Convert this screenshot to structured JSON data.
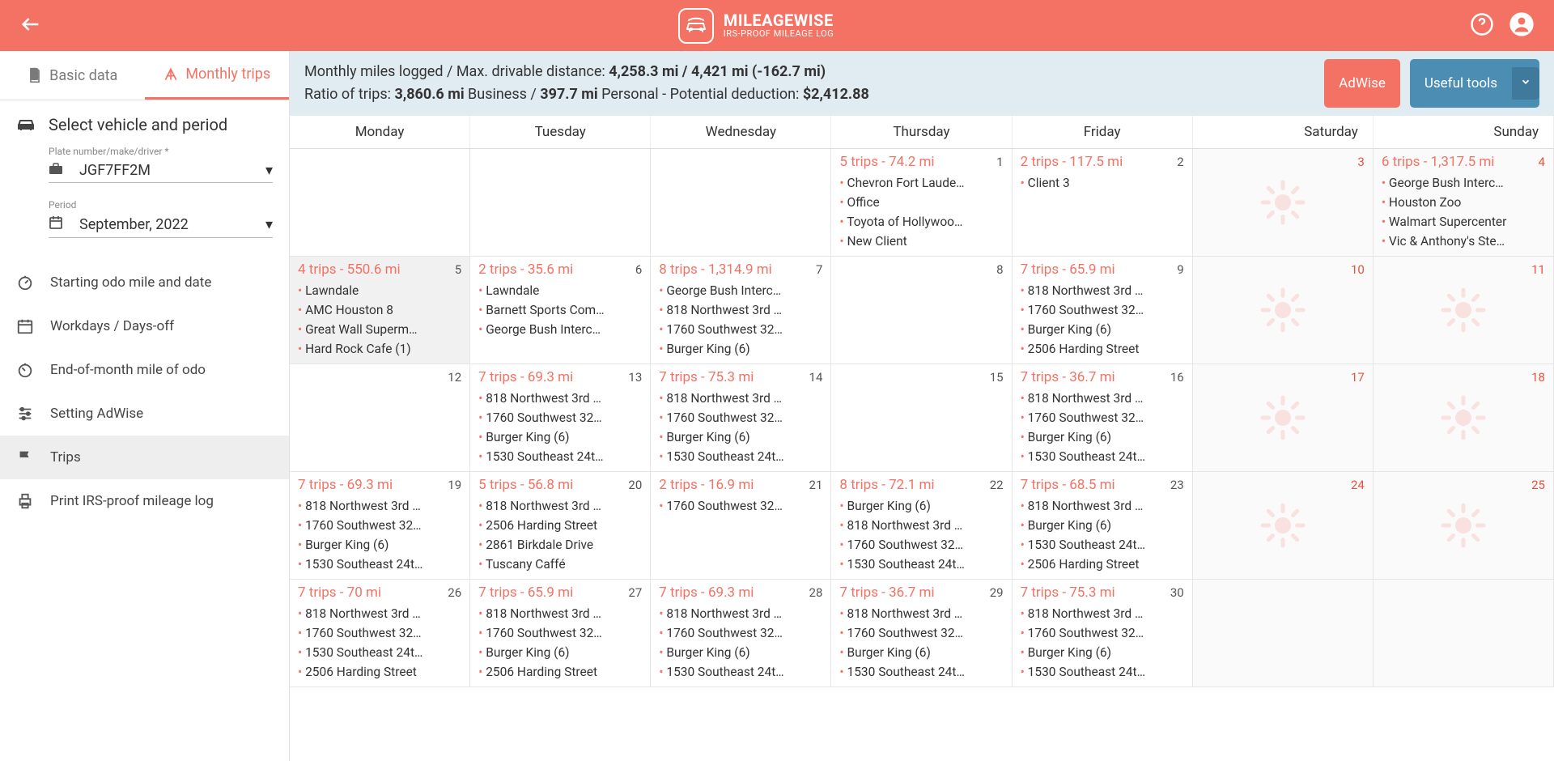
{
  "header": {
    "brand_top": "MILEAGEWISE",
    "brand_sub": "IRS-PROOF MILEAGE LOG"
  },
  "tabs": {
    "basic": "Basic data",
    "monthly": "Monthly trips"
  },
  "sidebar": {
    "section_title": "Select vehicle and period",
    "plate_label": "Plate number/make/driver *",
    "plate_value": "JGF7FF2M",
    "period_label": "Period",
    "period_value": "September, 2022",
    "nav": {
      "odo_start": "Starting odo mile and date",
      "workdays": "Workdays / Days-off",
      "odo_end": "End-of-month mile of odo",
      "adwise": "Setting AdWise",
      "trips": "Trips",
      "print": "Print IRS-proof mileage log"
    }
  },
  "summary": {
    "line1_prefix": "Monthly miles logged / Max. drivable distance: ",
    "line1_bold": "4,258.3 mi / 4,421 mi (-162.7 mi)",
    "line2_a": "Ratio of trips: ",
    "line2_b": "3,860.6 mi",
    "line2_c": " Business / ",
    "line2_d": "397.7 mi",
    "line2_e": " Personal - Potential deduction: ",
    "line2_f": "$2,412.88",
    "btn_adwise": "AdWise",
    "btn_tools": "Useful tools"
  },
  "weekdays": [
    "Monday",
    "Tuesday",
    "Wednesday",
    "Thursday",
    "Friday",
    "Saturday",
    "Sunday"
  ],
  "cells": [
    {
      "day": "",
      "summary": "",
      "items": [],
      "weekend": false,
      "red": false,
      "sun": false
    },
    {
      "day": "",
      "summary": "",
      "items": [],
      "weekend": false,
      "red": false,
      "sun": false
    },
    {
      "day": "",
      "summary": "",
      "items": [],
      "weekend": false,
      "red": false,
      "sun": false
    },
    {
      "day": "1",
      "summary": "5 trips - 74.2 mi",
      "items": [
        "Chevron Fort Laude…",
        "Office",
        "Toyota of Hollywoo…",
        "New Client"
      ],
      "weekend": false,
      "red": false,
      "sun": false
    },
    {
      "day": "2",
      "summary": "2 trips - 117.5 mi",
      "items": [
        "Client 3"
      ],
      "weekend": false,
      "red": false,
      "sun": false
    },
    {
      "day": "3",
      "summary": "",
      "items": [],
      "weekend": true,
      "red": true,
      "sun": true
    },
    {
      "day": "4",
      "summary": "6 trips - 1,317.5 mi",
      "items": [
        "George Bush Interc…",
        "Houston Zoo",
        "Walmart Supercenter",
        "Vic & Anthony's Ste…"
      ],
      "weekend": true,
      "red": true,
      "sun": false
    },
    {
      "day": "5",
      "summary": "4 trips - 550.6 mi",
      "items": [
        "Lawndale",
        "AMC Houston 8",
        "Great Wall Superm…",
        "Hard Rock Cafe (1)"
      ],
      "weekend": false,
      "red": false,
      "sun": false,
      "highlight": true
    },
    {
      "day": "6",
      "summary": "2 trips - 35.6 mi",
      "items": [
        "Lawndale",
        "Barnett Sports Com…",
        "George Bush Interc…"
      ],
      "weekend": false,
      "red": false,
      "sun": false
    },
    {
      "day": "7",
      "summary": "8 trips - 1,314.9 mi",
      "items": [
        "George Bush Interc…",
        "818 Northwest 3rd …",
        "1760 Southwest 32…",
        "Burger King (6)"
      ],
      "weekend": false,
      "red": false,
      "sun": false
    },
    {
      "day": "8",
      "summary": "",
      "items": [],
      "weekend": false,
      "red": false,
      "sun": false
    },
    {
      "day": "9",
      "summary": "7 trips - 65.9 mi",
      "items": [
        "818 Northwest 3rd …",
        "1760 Southwest 32…",
        "Burger King (6)",
        "2506 Harding Street"
      ],
      "weekend": false,
      "red": false,
      "sun": false
    },
    {
      "day": "10",
      "summary": "",
      "items": [],
      "weekend": true,
      "red": true,
      "sun": true
    },
    {
      "day": "11",
      "summary": "",
      "items": [],
      "weekend": true,
      "red": true,
      "sun": true
    },
    {
      "day": "12",
      "summary": "",
      "items": [],
      "weekend": false,
      "red": false,
      "sun": false
    },
    {
      "day": "13",
      "summary": "7 trips - 69.3 mi",
      "items": [
        "818 Northwest 3rd …",
        "1760 Southwest 32…",
        "Burger King (6)",
        "1530 Southeast 24t…"
      ],
      "weekend": false,
      "red": false,
      "sun": false
    },
    {
      "day": "14",
      "summary": "7 trips - 75.3 mi",
      "items": [
        "818 Northwest 3rd …",
        "1760 Southwest 32…",
        "Burger King (6)",
        "1530 Southeast 24t…"
      ],
      "weekend": false,
      "red": false,
      "sun": false
    },
    {
      "day": "15",
      "summary": "",
      "items": [],
      "weekend": false,
      "red": false,
      "sun": false
    },
    {
      "day": "16",
      "summary": "7 trips - 36.7 mi",
      "items": [
        "818 Northwest 3rd …",
        "1760 Southwest 32…",
        "Burger King (6)",
        "1530 Southeast 24t…"
      ],
      "weekend": false,
      "red": false,
      "sun": false
    },
    {
      "day": "17",
      "summary": "",
      "items": [],
      "weekend": true,
      "red": true,
      "sun": true
    },
    {
      "day": "18",
      "summary": "",
      "items": [],
      "weekend": true,
      "red": true,
      "sun": true
    },
    {
      "day": "19",
      "summary": "7 trips - 69.3 mi",
      "items": [
        "818 Northwest 3rd …",
        "1760 Southwest 32…",
        "Burger King (6)",
        "1530 Southeast 24t…"
      ],
      "weekend": false,
      "red": false,
      "sun": false
    },
    {
      "day": "20",
      "summary": "5 trips - 56.8 mi",
      "items": [
        "818 Northwest 3rd …",
        "2506 Harding Street",
        "2861 Birkdale Drive",
        "Tuscany Caffé"
      ],
      "weekend": false,
      "red": false,
      "sun": false
    },
    {
      "day": "21",
      "summary": "2 trips - 16.9 mi",
      "items": [
        "1760 Southwest 32…"
      ],
      "weekend": false,
      "red": false,
      "sun": false
    },
    {
      "day": "22",
      "summary": "8 trips - 72.1 mi",
      "items": [
        "Burger King (6)",
        "818 Northwest 3rd …",
        "1760 Southwest 32…",
        "1530 Southeast 24t…"
      ],
      "weekend": false,
      "red": false,
      "sun": false
    },
    {
      "day": "23",
      "summary": "7 trips - 68.5 mi",
      "items": [
        "818 Northwest 3rd …",
        "Burger King (6)",
        "1530 Southeast 24t…",
        "2506 Harding Street"
      ],
      "weekend": false,
      "red": false,
      "sun": false
    },
    {
      "day": "24",
      "summary": "",
      "items": [],
      "weekend": true,
      "red": true,
      "sun": true
    },
    {
      "day": "25",
      "summary": "",
      "items": [],
      "weekend": true,
      "red": true,
      "sun": true
    },
    {
      "day": "26",
      "summary": "7 trips - 70 mi",
      "items": [
        "818 Northwest 3rd …",
        "1760 Southwest 32…",
        "1530 Southeast 24t…",
        "2506 Harding Street"
      ],
      "weekend": false,
      "red": false,
      "sun": false
    },
    {
      "day": "27",
      "summary": "7 trips - 65.9 mi",
      "items": [
        "818 Northwest 3rd …",
        "1760 Southwest 32…",
        "Burger King (6)",
        "2506 Harding Street"
      ],
      "weekend": false,
      "red": false,
      "sun": false
    },
    {
      "day": "28",
      "summary": "7 trips - 69.3 mi",
      "items": [
        "818 Northwest 3rd …",
        "1760 Southwest 32…",
        "Burger King (6)",
        "1530 Southeast 24t…"
      ],
      "weekend": false,
      "red": false,
      "sun": false
    },
    {
      "day": "29",
      "summary": "7 trips - 36.7 mi",
      "items": [
        "818 Northwest 3rd …",
        "1760 Southwest 32…",
        "Burger King (6)",
        "1530 Southeast 24t…"
      ],
      "weekend": false,
      "red": false,
      "sun": false
    },
    {
      "day": "30",
      "summary": "7 trips - 75.3 mi",
      "items": [
        "818 Northwest 3rd …",
        "1760 Southwest 32…",
        "Burger King (6)",
        "1530 Southeast 24t…"
      ],
      "weekend": false,
      "red": false,
      "sun": false
    },
    {
      "day": "",
      "summary": "",
      "items": [],
      "weekend": true,
      "red": false,
      "sun": false
    },
    {
      "day": "",
      "summary": "",
      "items": [],
      "weekend": true,
      "red": false,
      "sun": false
    }
  ],
  "colors": {
    "accent": "#f47264",
    "tools": "#4c8db3",
    "summary_bg": "#e1ebf2"
  }
}
